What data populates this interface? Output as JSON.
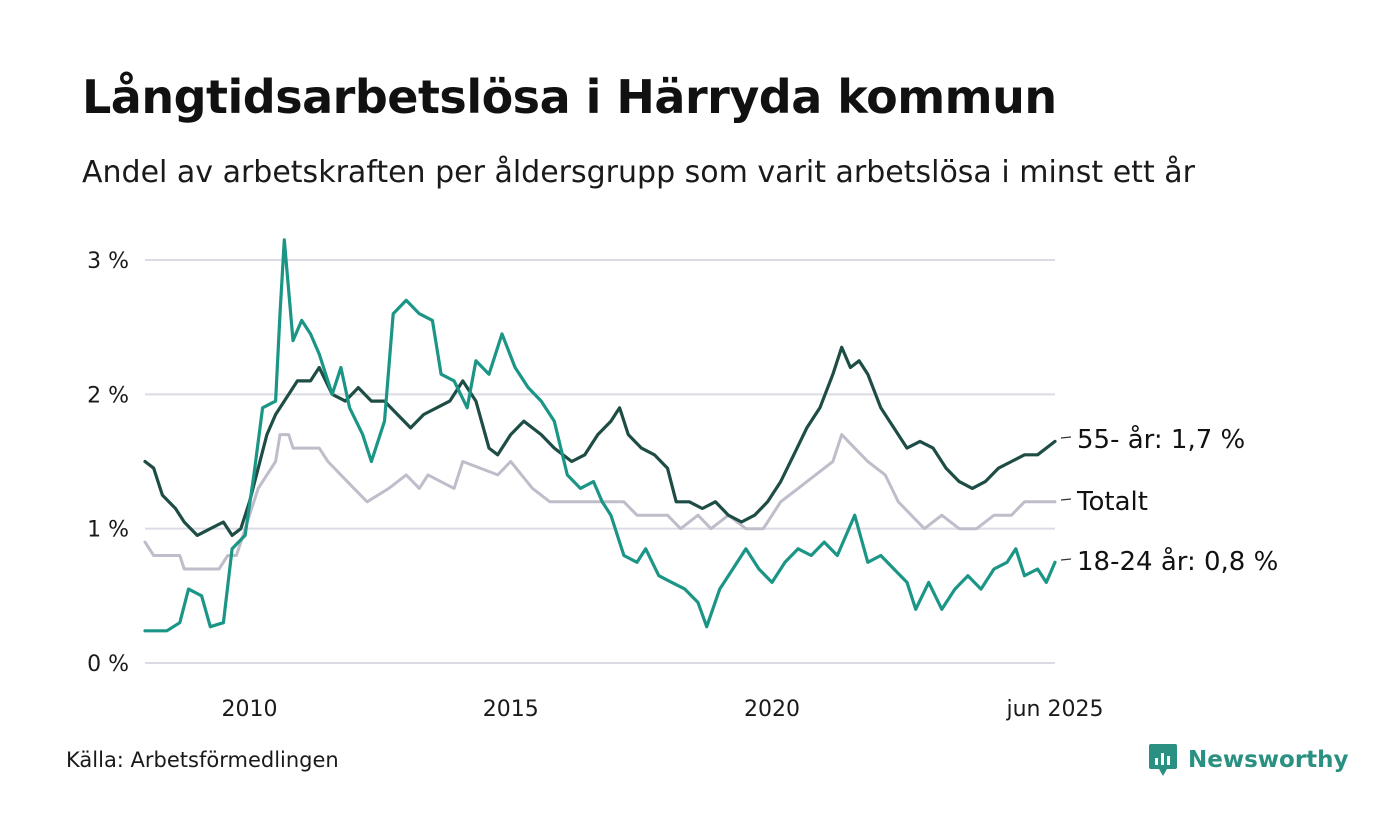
{
  "title": "Långtidsarbetslösa i Härryda kommun",
  "subtitle": "Andel av arbetskraften per åldersgrupp som varit arbetslösa i minst ett år",
  "source": "Källa: Arbetsförmedlingen",
  "brand": {
    "name": "Newsworthy",
    "icon": "newsworthy-logo-icon",
    "color": "#2a9081"
  },
  "chart_data": {
    "type": "line",
    "title": "Långtidsarbetslösa i Härryda kommun",
    "subtitle": "Andel av arbetskraften per åldersgrupp som varit arbetslösa i minst ett år",
    "ylim": [
      0,
      3
    ],
    "y_ticks": [
      {
        "value": 0,
        "label": "0 %"
      },
      {
        "value": 1,
        "label": "1 %"
      },
      {
        "value": 2,
        "label": "2 %"
      },
      {
        "value": 3,
        "label": "3 %"
      }
    ],
    "xlim": [
      "2008-01",
      "2025-06"
    ],
    "x_ticks": [
      {
        "date": "2010-01",
        "label": "2010"
      },
      {
        "date": "2015-01",
        "label": "2015"
      },
      {
        "date": "2020-01",
        "label": "2020"
      },
      {
        "date": "2025-06",
        "label": "jun 2025"
      }
    ],
    "grid": true,
    "series": [
      {
        "name": "Totalt",
        "end_label": "Totalt",
        "color": "#bfbdca",
        "points": [
          [
            "2008-01",
            0.9
          ],
          [
            "2008-03",
            0.8
          ],
          [
            "2008-09",
            0.8
          ],
          [
            "2008-10",
            0.7
          ],
          [
            "2009-06",
            0.7
          ],
          [
            "2009-08",
            0.8
          ],
          [
            "2009-10",
            0.8
          ],
          [
            "2009-11",
            0.9
          ],
          [
            "2010-01",
            1.1
          ],
          [
            "2010-03",
            1.3
          ],
          [
            "2010-05",
            1.4
          ],
          [
            "2010-07",
            1.5
          ],
          [
            "2010-08",
            1.7
          ],
          [
            "2010-10",
            1.7
          ],
          [
            "2010-11",
            1.6
          ],
          [
            "2011-05",
            1.6
          ],
          [
            "2011-07",
            1.5
          ],
          [
            "2011-10",
            1.4
          ],
          [
            "2012-01",
            1.3
          ],
          [
            "2012-04",
            1.2
          ],
          [
            "2012-09",
            1.3
          ],
          [
            "2013-01",
            1.4
          ],
          [
            "2013-04",
            1.3
          ],
          [
            "2013-06",
            1.4
          ],
          [
            "2013-12",
            1.3
          ],
          [
            "2014-02",
            1.5
          ],
          [
            "2014-10",
            1.4
          ],
          [
            "2015-01",
            1.5
          ],
          [
            "2015-06",
            1.3
          ],
          [
            "2015-10",
            1.2
          ],
          [
            "2016-03",
            1.2
          ],
          [
            "2016-07",
            1.2
          ],
          [
            "2016-12",
            1.2
          ],
          [
            "2017-03",
            1.2
          ],
          [
            "2017-06",
            1.1
          ],
          [
            "2017-10",
            1.1
          ],
          [
            "2018-01",
            1.1
          ],
          [
            "2018-04",
            1.0
          ],
          [
            "2018-08",
            1.1
          ],
          [
            "2018-11",
            1.0
          ],
          [
            "2019-03",
            1.1
          ],
          [
            "2019-07",
            1.0
          ],
          [
            "2019-11",
            1.0
          ],
          [
            "2020-03",
            1.2
          ],
          [
            "2020-07",
            1.3
          ],
          [
            "2020-11",
            1.4
          ],
          [
            "2021-03",
            1.5
          ],
          [
            "2021-05",
            1.7
          ],
          [
            "2021-08",
            1.6
          ],
          [
            "2021-11",
            1.5
          ],
          [
            "2022-03",
            1.4
          ],
          [
            "2022-06",
            1.2
          ],
          [
            "2022-09",
            1.1
          ],
          [
            "2022-12",
            1.0
          ],
          [
            "2023-04",
            1.1
          ],
          [
            "2023-08",
            1.0
          ],
          [
            "2023-12",
            1.0
          ],
          [
            "2024-04",
            1.1
          ],
          [
            "2024-08",
            1.1
          ],
          [
            "2024-11",
            1.2
          ],
          [
            "2025-06",
            1.2
          ]
        ]
      },
      {
        "name": "55- år",
        "end_label": "55- år: 1,7 %",
        "color": "#1e4d45",
        "points": [
          [
            "2008-01",
            1.5
          ],
          [
            "2008-03",
            1.45
          ],
          [
            "2008-05",
            1.25
          ],
          [
            "2008-08",
            1.15
          ],
          [
            "2008-10",
            1.05
          ],
          [
            "2009-01",
            0.95
          ],
          [
            "2009-04",
            1.0
          ],
          [
            "2009-07",
            1.05
          ],
          [
            "2009-09",
            0.95
          ],
          [
            "2009-11",
            1.0
          ],
          [
            "2010-01",
            1.2
          ],
          [
            "2010-03",
            1.45
          ],
          [
            "2010-05",
            1.7
          ],
          [
            "2010-07",
            1.85
          ],
          [
            "2010-09",
            1.95
          ],
          [
            "2010-12",
            2.1
          ],
          [
            "2011-03",
            2.1
          ],
          [
            "2011-05",
            2.2
          ],
          [
            "2011-08",
            2.0
          ],
          [
            "2011-11",
            1.95
          ],
          [
            "2012-02",
            2.05
          ],
          [
            "2012-05",
            1.95
          ],
          [
            "2012-08",
            1.95
          ],
          [
            "2012-11",
            1.85
          ],
          [
            "2013-02",
            1.75
          ],
          [
            "2013-05",
            1.85
          ],
          [
            "2013-08",
            1.9
          ],
          [
            "2013-11",
            1.95
          ],
          [
            "2014-02",
            2.1
          ],
          [
            "2014-05",
            1.95
          ],
          [
            "2014-08",
            1.6
          ],
          [
            "2014-10",
            1.55
          ],
          [
            "2015-01",
            1.7
          ],
          [
            "2015-04",
            1.8
          ],
          [
            "2015-08",
            1.7
          ],
          [
            "2015-11",
            1.6
          ],
          [
            "2016-01",
            1.55
          ],
          [
            "2016-03",
            1.5
          ],
          [
            "2016-06",
            1.55
          ],
          [
            "2016-09",
            1.7
          ],
          [
            "2016-12",
            1.8
          ],
          [
            "2017-02",
            1.9
          ],
          [
            "2017-04",
            1.7
          ],
          [
            "2017-07",
            1.6
          ],
          [
            "2017-10",
            1.55
          ],
          [
            "2018-01",
            1.45
          ],
          [
            "2018-03",
            1.2
          ],
          [
            "2018-06",
            1.2
          ],
          [
            "2018-09",
            1.15
          ],
          [
            "2018-12",
            1.2
          ],
          [
            "2019-03",
            1.1
          ],
          [
            "2019-06",
            1.05
          ],
          [
            "2019-09",
            1.1
          ],
          [
            "2019-12",
            1.2
          ],
          [
            "2020-03",
            1.35
          ],
          [
            "2020-06",
            1.55
          ],
          [
            "2020-09",
            1.75
          ],
          [
            "2020-12",
            1.9
          ],
          [
            "2021-03",
            2.15
          ],
          [
            "2021-05",
            2.35
          ],
          [
            "2021-07",
            2.2
          ],
          [
            "2021-09",
            2.25
          ],
          [
            "2021-11",
            2.15
          ],
          [
            "2022-02",
            1.9
          ],
          [
            "2022-05",
            1.75
          ],
          [
            "2022-08",
            1.6
          ],
          [
            "2022-11",
            1.65
          ],
          [
            "2023-02",
            1.6
          ],
          [
            "2023-05",
            1.45
          ],
          [
            "2023-08",
            1.35
          ],
          [
            "2023-11",
            1.3
          ],
          [
            "2024-02",
            1.35
          ],
          [
            "2024-05",
            1.45
          ],
          [
            "2024-08",
            1.5
          ],
          [
            "2024-11",
            1.55
          ],
          [
            "2025-02",
            1.55
          ],
          [
            "2025-06",
            1.65
          ]
        ]
      },
      {
        "name": "18-24 år",
        "end_label": "18-24 år: 0,8 %",
        "color": "#1b9585",
        "points": [
          [
            "2008-01",
            0.24
          ],
          [
            "2008-06",
            0.24
          ],
          [
            "2008-09",
            0.3
          ],
          [
            "2008-11",
            0.55
          ],
          [
            "2009-02",
            0.5
          ],
          [
            "2009-04",
            0.27
          ],
          [
            "2009-07",
            0.3
          ],
          [
            "2009-09",
            0.85
          ],
          [
            "2009-12",
            0.95
          ],
          [
            "2010-02",
            1.4
          ],
          [
            "2010-04",
            1.9
          ],
          [
            "2010-07",
            1.95
          ],
          [
            "2010-08",
            2.6
          ],
          [
            "2010-09",
            3.15
          ],
          [
            "2010-11",
            2.4
          ],
          [
            "2011-01",
            2.55
          ],
          [
            "2011-03",
            2.45
          ],
          [
            "2011-05",
            2.3
          ],
          [
            "2011-08",
            2.0
          ],
          [
            "2011-10",
            2.2
          ],
          [
            "2011-12",
            1.9
          ],
          [
            "2012-03",
            1.7
          ],
          [
            "2012-05",
            1.5
          ],
          [
            "2012-08",
            1.8
          ],
          [
            "2012-10",
            2.6
          ],
          [
            "2013-01",
            2.7
          ],
          [
            "2013-04",
            2.6
          ],
          [
            "2013-07",
            2.55
          ],
          [
            "2013-09",
            2.15
          ],
          [
            "2013-12",
            2.1
          ],
          [
            "2014-03",
            1.9
          ],
          [
            "2014-05",
            2.25
          ],
          [
            "2014-08",
            2.15
          ],
          [
            "2014-11",
            2.45
          ],
          [
            "2015-02",
            2.2
          ],
          [
            "2015-05",
            2.05
          ],
          [
            "2015-08",
            1.95
          ],
          [
            "2015-11",
            1.8
          ],
          [
            "2016-02",
            1.4
          ],
          [
            "2016-05",
            1.3
          ],
          [
            "2016-08",
            1.35
          ],
          [
            "2016-10",
            1.2
          ],
          [
            "2016-12",
            1.1
          ],
          [
            "2017-03",
            0.8
          ],
          [
            "2017-06",
            0.75
          ],
          [
            "2017-08",
            0.85
          ],
          [
            "2017-11",
            0.65
          ],
          [
            "2018-02",
            0.6
          ],
          [
            "2018-05",
            0.55
          ],
          [
            "2018-08",
            0.45
          ],
          [
            "2018-10",
            0.27
          ],
          [
            "2019-01",
            0.55
          ],
          [
            "2019-04",
            0.7
          ],
          [
            "2019-07",
            0.85
          ],
          [
            "2019-10",
            0.7
          ],
          [
            "2020-01",
            0.6
          ],
          [
            "2020-04",
            0.75
          ],
          [
            "2020-07",
            0.85
          ],
          [
            "2020-10",
            0.8
          ],
          [
            "2021-01",
            0.9
          ],
          [
            "2021-04",
            0.8
          ],
          [
            "2021-06",
            0.95
          ],
          [
            "2021-08",
            1.1
          ],
          [
            "2021-11",
            0.75
          ],
          [
            "2022-02",
            0.8
          ],
          [
            "2022-05",
            0.7
          ],
          [
            "2022-08",
            0.6
          ],
          [
            "2022-10",
            0.4
          ],
          [
            "2023-01",
            0.6
          ],
          [
            "2023-04",
            0.4
          ],
          [
            "2023-07",
            0.55
          ],
          [
            "2023-10",
            0.65
          ],
          [
            "2024-01",
            0.55
          ],
          [
            "2024-04",
            0.7
          ],
          [
            "2024-07",
            0.75
          ],
          [
            "2024-09",
            0.85
          ],
          [
            "2024-11",
            0.65
          ],
          [
            "2025-02",
            0.7
          ],
          [
            "2025-04",
            0.6
          ],
          [
            "2025-06",
            0.75
          ]
        ]
      }
    ]
  }
}
